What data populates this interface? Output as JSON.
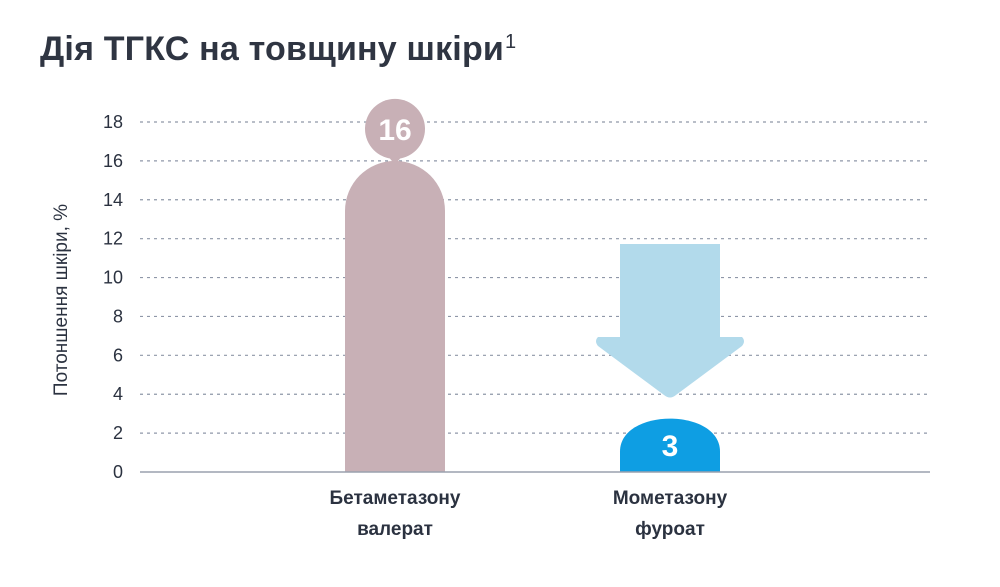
{
  "title": {
    "text": "Дія ТГКС на товщину шкіри",
    "footnote": "1"
  },
  "colors": {
    "bar_betamethasone": "#c8b0b6",
    "bar_mometasone": "#0e9ee3",
    "arrow": "#b2daeb",
    "grid": "#8f97a8",
    "axis": "#9aa1ae"
  },
  "chart_data": {
    "type": "bar",
    "ylabel": "Потоншення шкіри, %",
    "ylim": [
      0,
      18
    ],
    "yticks": [
      0,
      2,
      4,
      6,
      8,
      10,
      12,
      14,
      16,
      18
    ],
    "grid": "horizontal dashed",
    "categories": [
      [
        "Бетаметазону",
        "валерат"
      ],
      [
        "Мометазону",
        "фуроат"
      ]
    ],
    "values": [
      16,
      3
    ],
    "data_labels": [
      "16",
      "3"
    ],
    "annotations": [
      "downward arrow above Мометазону фуроат bar"
    ]
  }
}
